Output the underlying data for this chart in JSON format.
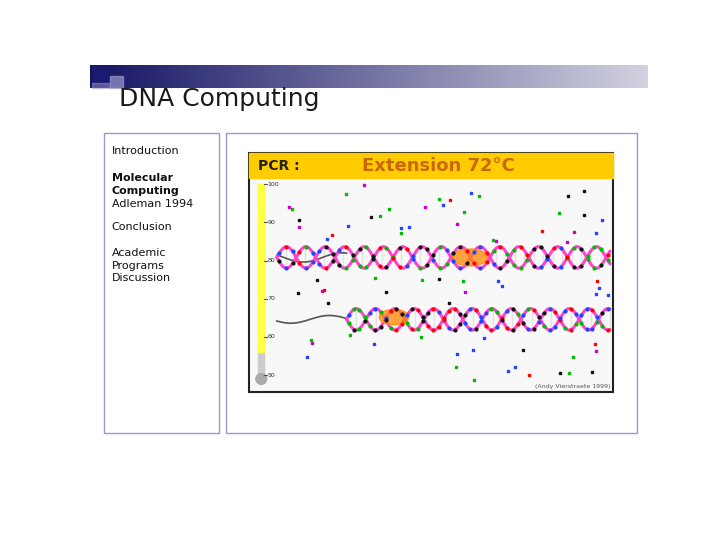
{
  "title": "DNA Computing",
  "nav_items": [
    "Introduction",
    "Molecular\nComputing",
    "Adleman 1994",
    "Conclusion",
    "Academic\nPrograms",
    "Discussion"
  ],
  "nav_bold": [
    false,
    true,
    false,
    false,
    false,
    false
  ],
  "bg_color": "#ffffff",
  "title_color": "#1a1a1a",
  "title_fontsize": 18,
  "left_panel_border": "#9999cc",
  "left_panel_bg": "#ffffff",
  "right_panel_border": "#9999cc",
  "right_panel_bg": "#ffffff",
  "pcr_label": "PCR :",
  "pcr_title": "Extension 72°C",
  "pcr_bar_color": "#ffcc00",
  "pcr_title_color": "#cc6600",
  "pcr_img_bg": "#ffffff",
  "pcr_img_border": "#222222",
  "thermometer_fill": "#ffff44",
  "thermometer_gray": "#cccccc",
  "dna_credit": "(Andy Vierstraete 1999)",
  "nav_fontsize": 8,
  "header_sq_color": "#1a1a6e",
  "header_sq2_color": "#9999cc"
}
